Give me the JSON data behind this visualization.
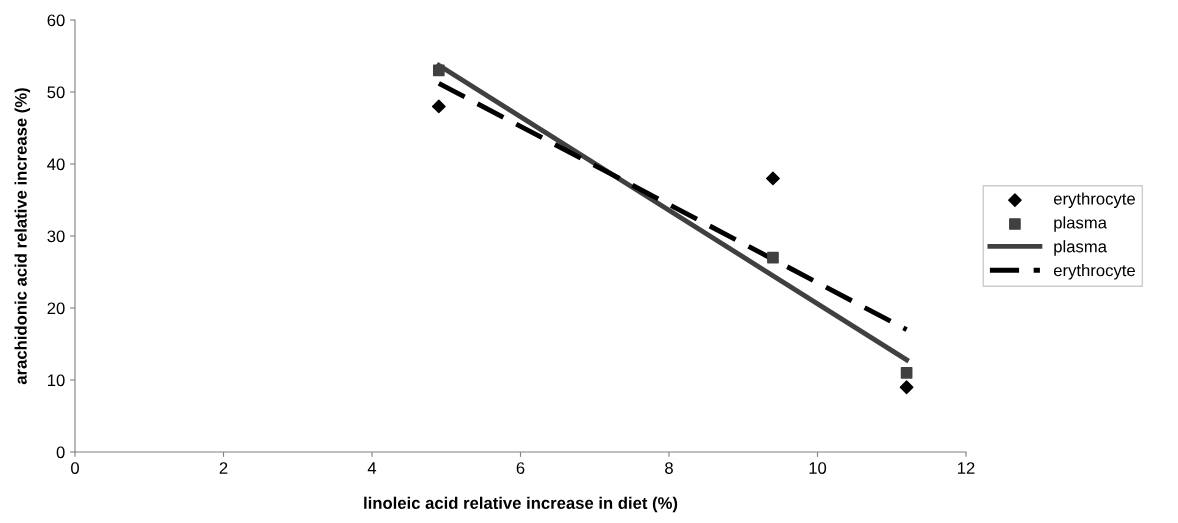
{
  "chart_data": {
    "type": "scatter",
    "xlabel": "linoleic acid relative increase in diet (%)",
    "ylabel": "arachidonic acid relative increase (%)",
    "xlim": [
      0,
      12
    ],
    "xticks": [
      0,
      2,
      4,
      6,
      8,
      10,
      12
    ],
    "ylim": [
      0,
      60
    ],
    "yticks": [
      0,
      10,
      20,
      30,
      40,
      50,
      60
    ],
    "grid": false,
    "legend": "right",
    "series": [
      {
        "name": "erythrocyte",
        "marker": "diamond",
        "color": "#000000",
        "x": [
          4.9,
          9.4,
          11.2
        ],
        "values": [
          48,
          38,
          9
        ]
      },
      {
        "name": "plasma",
        "marker": "square",
        "color": "#404040",
        "x": [
          4.9,
          9.4,
          11.2
        ],
        "values": [
          53,
          27,
          11
        ]
      },
      {
        "name": "plasma",
        "type": "line",
        "line_style": "solid",
        "color": "#404040",
        "x": [
          4.9,
          11.2
        ],
        "values": [
          53.7,
          12.8
        ]
      },
      {
        "name": "erythrocyte",
        "type": "line",
        "line_style": "dashed",
        "color": "#000000",
        "x": [
          4.9,
          11.2
        ],
        "values": [
          51.2,
          17.0
        ]
      }
    ]
  }
}
